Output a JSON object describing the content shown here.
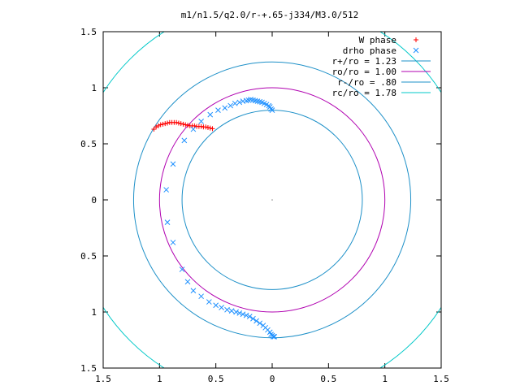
{
  "chart_data": {
    "type": "scatter",
    "title": "m1/n1.5/q2.0/r-+.65-j334/M3.0/512",
    "xlim": [
      -1.5,
      1.5
    ],
    "ylim": [
      -1.5,
      1.5
    ],
    "xticks": [
      "1.5",
      "1",
      "0.5",
      "0",
      "0.5",
      "1",
      "1.5"
    ],
    "yticks": [
      "1.5",
      "1",
      "0.5",
      "0",
      "0.5",
      "1",
      "1.5"
    ],
    "grid": false,
    "legend_position": "top-right",
    "circles": [
      {
        "label": "r+/ro = 1.23",
        "radius": 1.23,
        "color": "#1e90c8"
      },
      {
        "label": "ro/ro = 1.00",
        "radius": 1.0,
        "color": "#b000b0"
      },
      {
        "label": "r-/ro =  .80",
        "radius": 0.8,
        "color": "#1e90c8"
      },
      {
        "label": "rc/ro = 1.78",
        "radius": 1.78,
        "color": "#00c8c8"
      }
    ],
    "series": [
      {
        "name": "W phase",
        "marker": "+",
        "color": "#ff0000",
        "points": [
          [
            -1.05,
            0.63
          ],
          [
            -1.03,
            0.65
          ],
          [
            -1.01,
            0.66
          ],
          [
            -0.99,
            0.67
          ],
          [
            -0.97,
            0.675
          ],
          [
            -0.95,
            0.68
          ],
          [
            -0.93,
            0.685
          ],
          [
            -0.91,
            0.69
          ],
          [
            -0.89,
            0.69
          ],
          [
            -0.87,
            0.69
          ],
          [
            -0.85,
            0.69
          ],
          [
            -0.83,
            0.685
          ],
          [
            -0.81,
            0.68
          ],
          [
            -0.79,
            0.675
          ],
          [
            -0.77,
            0.67
          ],
          [
            -0.75,
            0.665
          ],
          [
            -0.73,
            0.66
          ],
          [
            -0.71,
            0.66
          ],
          [
            -0.69,
            0.66
          ],
          [
            -0.67,
            0.655
          ],
          [
            -0.65,
            0.655
          ],
          [
            -0.63,
            0.655
          ],
          [
            -0.61,
            0.65
          ],
          [
            -0.59,
            0.65
          ],
          [
            -0.57,
            0.645
          ],
          [
            -0.55,
            0.64
          ],
          [
            -0.53,
            0.635
          ]
        ]
      },
      {
        "name": "drho phase",
        "marker": "x",
        "color": "#1e90ff",
        "points": [
          [
            0.0,
            0.8
          ],
          [
            -0.01,
            0.81
          ],
          [
            -0.02,
            0.83
          ],
          [
            -0.03,
            0.84
          ],
          [
            -0.05,
            0.85
          ],
          [
            -0.07,
            0.86
          ],
          [
            -0.09,
            0.87
          ],
          [
            -0.11,
            0.875
          ],
          [
            -0.13,
            0.88
          ],
          [
            -0.15,
            0.885
          ],
          [
            -0.17,
            0.89
          ],
          [
            -0.19,
            0.895
          ],
          [
            -0.21,
            0.89
          ],
          [
            -0.23,
            0.885
          ],
          [
            -0.26,
            0.88
          ],
          [
            -0.29,
            0.87
          ],
          [
            -0.33,
            0.86
          ],
          [
            -0.37,
            0.84
          ],
          [
            -0.42,
            0.82
          ],
          [
            -0.48,
            0.8
          ],
          [
            -0.55,
            0.76
          ],
          [
            -0.63,
            0.7
          ],
          [
            -0.7,
            0.63
          ],
          [
            -0.78,
            0.53
          ],
          [
            -0.88,
            0.32
          ],
          [
            -0.94,
            0.09
          ],
          [
            -0.93,
            -0.2
          ],
          [
            -0.88,
            -0.38
          ],
          [
            -0.8,
            -0.62
          ],
          [
            -0.75,
            -0.73
          ],
          [
            -0.7,
            -0.81
          ],
          [
            -0.63,
            -0.86
          ],
          [
            -0.56,
            -0.91
          ],
          [
            -0.5,
            -0.94
          ],
          [
            -0.45,
            -0.96
          ],
          [
            -0.4,
            -0.98
          ],
          [
            -0.36,
            -0.99
          ],
          [
            -0.32,
            -1.0
          ],
          [
            -0.29,
            -1.01
          ],
          [
            -0.26,
            -1.02
          ],
          [
            -0.23,
            -1.03
          ],
          [
            -0.2,
            -1.04
          ],
          [
            -0.17,
            -1.06
          ],
          [
            -0.14,
            -1.08
          ],
          [
            -0.11,
            -1.1
          ],
          [
            -0.08,
            -1.12
          ],
          [
            -0.06,
            -1.14
          ],
          [
            -0.04,
            -1.16
          ],
          [
            -0.02,
            -1.18
          ],
          [
            -0.01,
            -1.2
          ],
          [
            0.0,
            -1.21
          ],
          [
            0.01,
            -1.22
          ],
          [
            0.02,
            -1.22
          ]
        ]
      }
    ]
  }
}
